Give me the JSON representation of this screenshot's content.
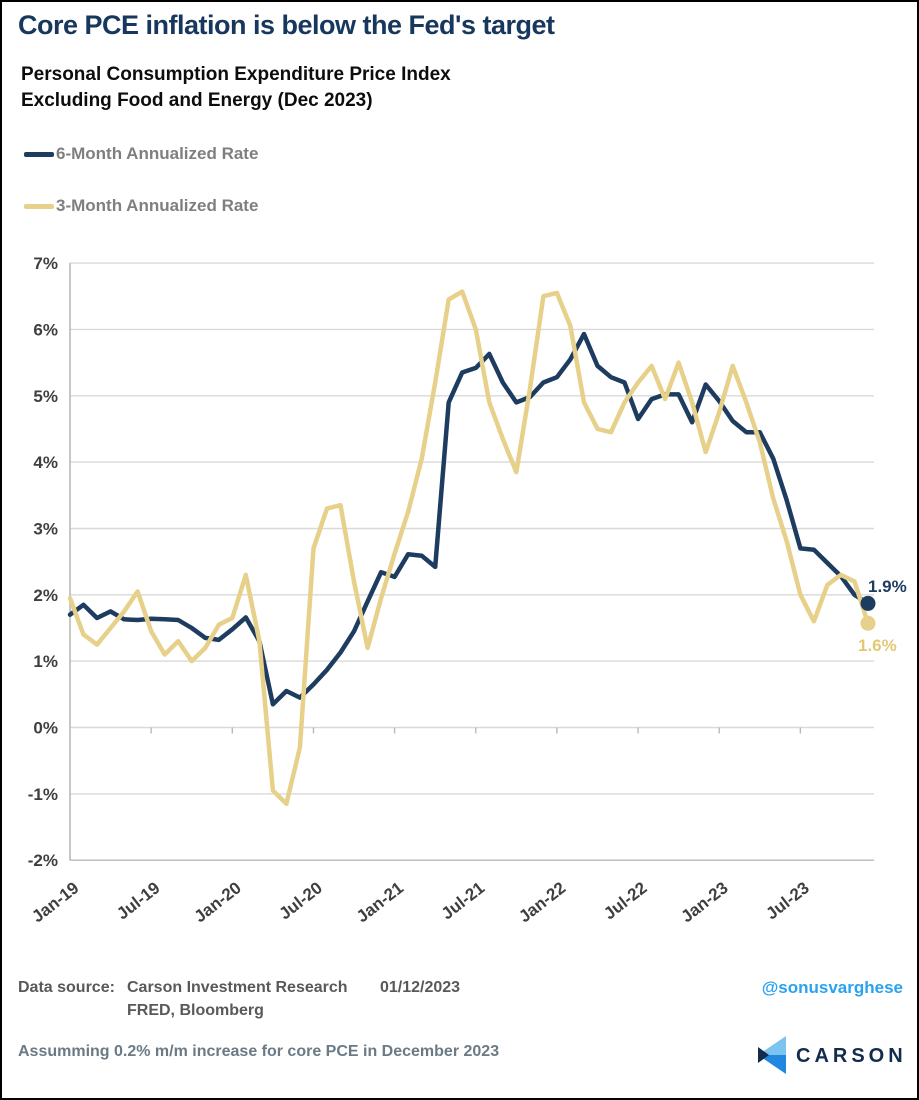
{
  "header": {
    "title": "Core PCE inflation is below the Fed's target",
    "subtitle_line1": "Personal Consumption Expenditure Price Index",
    "subtitle_line2": "Excluding Food and Energy (Dec 2023)"
  },
  "colors": {
    "title_navy": "#17375d",
    "series_6m": "#1d3c5f",
    "series_3m": "#e7d08a",
    "end_label_3m": "#e3c878",
    "gridline": "#d9d9d9",
    "axis_line": "#b9b9b9",
    "tick_text": "#3f3f3f",
    "legend_text": "#7f7f7f",
    "footer_text": "#595959",
    "assumption_text": "#6b7a85",
    "handle_blue": "#2aa2ee",
    "logo_navy": "#132c4e",
    "logo_light_blue": "#7cc3f0",
    "logo_bright_blue": "#2287e0"
  },
  "chart_data": {
    "type": "line",
    "title": "Personal Consumption Expenditure Price Index Excluding Food and Energy (Dec 2023)",
    "xlabel": "",
    "ylabel": "",
    "ylim": [
      -2,
      7
    ],
    "grid": true,
    "legend_position": "top-left",
    "x_unit": "month",
    "x_start": "Jan-19",
    "x_end": "Dec-23",
    "x_tick_labels": [
      "Jan-19",
      "Jul-19",
      "Jan-20",
      "Jul-20",
      "Jan-21",
      "Jul-21",
      "Jan-22",
      "Jul-22",
      "Jan-23",
      "Jul-23"
    ],
    "x_tick_month_index": [
      0,
      6,
      12,
      18,
      24,
      30,
      36,
      42,
      48,
      54
    ],
    "y_tick_labels": [
      "7%",
      "6%",
      "5%",
      "4%",
      "3%",
      "2%",
      "1%",
      "0%",
      "-1%",
      "-2%"
    ],
    "months": [
      "Jan-19",
      "Feb-19",
      "Mar-19",
      "Apr-19",
      "May-19",
      "Jun-19",
      "Jul-19",
      "Aug-19",
      "Sep-19",
      "Oct-19",
      "Nov-19",
      "Dec-19",
      "Jan-20",
      "Feb-20",
      "Mar-20",
      "Apr-20",
      "May-20",
      "Jun-20",
      "Jul-20",
      "Aug-20",
      "Sep-20",
      "Oct-20",
      "Nov-20",
      "Dec-20",
      "Jan-21",
      "Feb-21",
      "Mar-21",
      "Apr-21",
      "May-21",
      "Jun-21",
      "Jul-21",
      "Aug-21",
      "Sep-21",
      "Oct-21",
      "Nov-21",
      "Dec-21",
      "Jan-22",
      "Feb-22",
      "Mar-22",
      "Apr-22",
      "May-22",
      "Jun-22",
      "Jul-22",
      "Aug-22",
      "Sep-22",
      "Oct-22",
      "Nov-22",
      "Dec-22",
      "Jan-23",
      "Feb-23",
      "Mar-23",
      "Apr-23",
      "May-23",
      "Jun-23",
      "Jul-23",
      "Aug-23",
      "Sep-23",
      "Oct-23",
      "Nov-23",
      "Dec-23"
    ],
    "series": [
      {
        "name": "6-Month Annualized Rate",
        "color": "#1d3c5f",
        "end_label": "1.9%",
        "values": [
          1.7,
          1.85,
          1.65,
          1.75,
          1.63,
          1.62,
          1.64,
          1.63,
          1.62,
          1.5,
          1.35,
          1.32,
          1.48,
          1.66,
          1.3,
          0.35,
          0.55,
          0.45,
          0.65,
          0.87,
          1.13,
          1.45,
          1.9,
          2.34,
          2.27,
          2.61,
          2.59,
          2.42,
          4.9,
          5.35,
          5.42,
          5.63,
          5.2,
          4.9,
          4.98,
          5.2,
          5.28,
          5.55,
          5.93,
          5.45,
          5.28,
          5.2,
          4.65,
          4.95,
          5.02,
          5.02,
          4.6,
          5.17,
          4.92,
          4.62,
          4.45,
          4.45,
          4.05,
          3.42,
          2.7,
          2.68,
          2.48,
          2.28,
          2.0,
          1.87
        ]
      },
      {
        "name": "3-Month Annualized Rate",
        "color": "#e7d08a",
        "end_label": "1.6%",
        "values": [
          1.95,
          1.4,
          1.25,
          1.5,
          1.75,
          2.05,
          1.45,
          1.1,
          1.3,
          1.0,
          1.2,
          1.55,
          1.65,
          2.3,
          1.3,
          -0.95,
          -1.15,
          -0.3,
          2.7,
          3.3,
          3.35,
          2.2,
          1.2,
          1.95,
          2.62,
          3.25,
          4.05,
          5.2,
          6.45,
          6.57,
          6.0,
          4.9,
          4.35,
          3.85,
          5.1,
          6.5,
          6.55,
          6.05,
          4.9,
          4.5,
          4.45,
          4.9,
          5.2,
          5.45,
          4.95,
          5.5,
          4.9,
          4.15,
          4.75,
          5.45,
          4.9,
          4.3,
          3.45,
          2.8,
          2.0,
          1.6,
          2.15,
          2.3,
          2.2,
          1.57
        ]
      }
    ]
  },
  "footer": {
    "data_source_label": "Data source:",
    "data_source_line1": "Carson Investment Research",
    "data_source_date": "01/12/2023",
    "data_source_line2": "FRED, Bloomberg",
    "handle": "@sonusvarghese",
    "assumption": "Assumming 0.2% m/m increase for core PCE in December 2023",
    "logo_text": "CARSON"
  }
}
